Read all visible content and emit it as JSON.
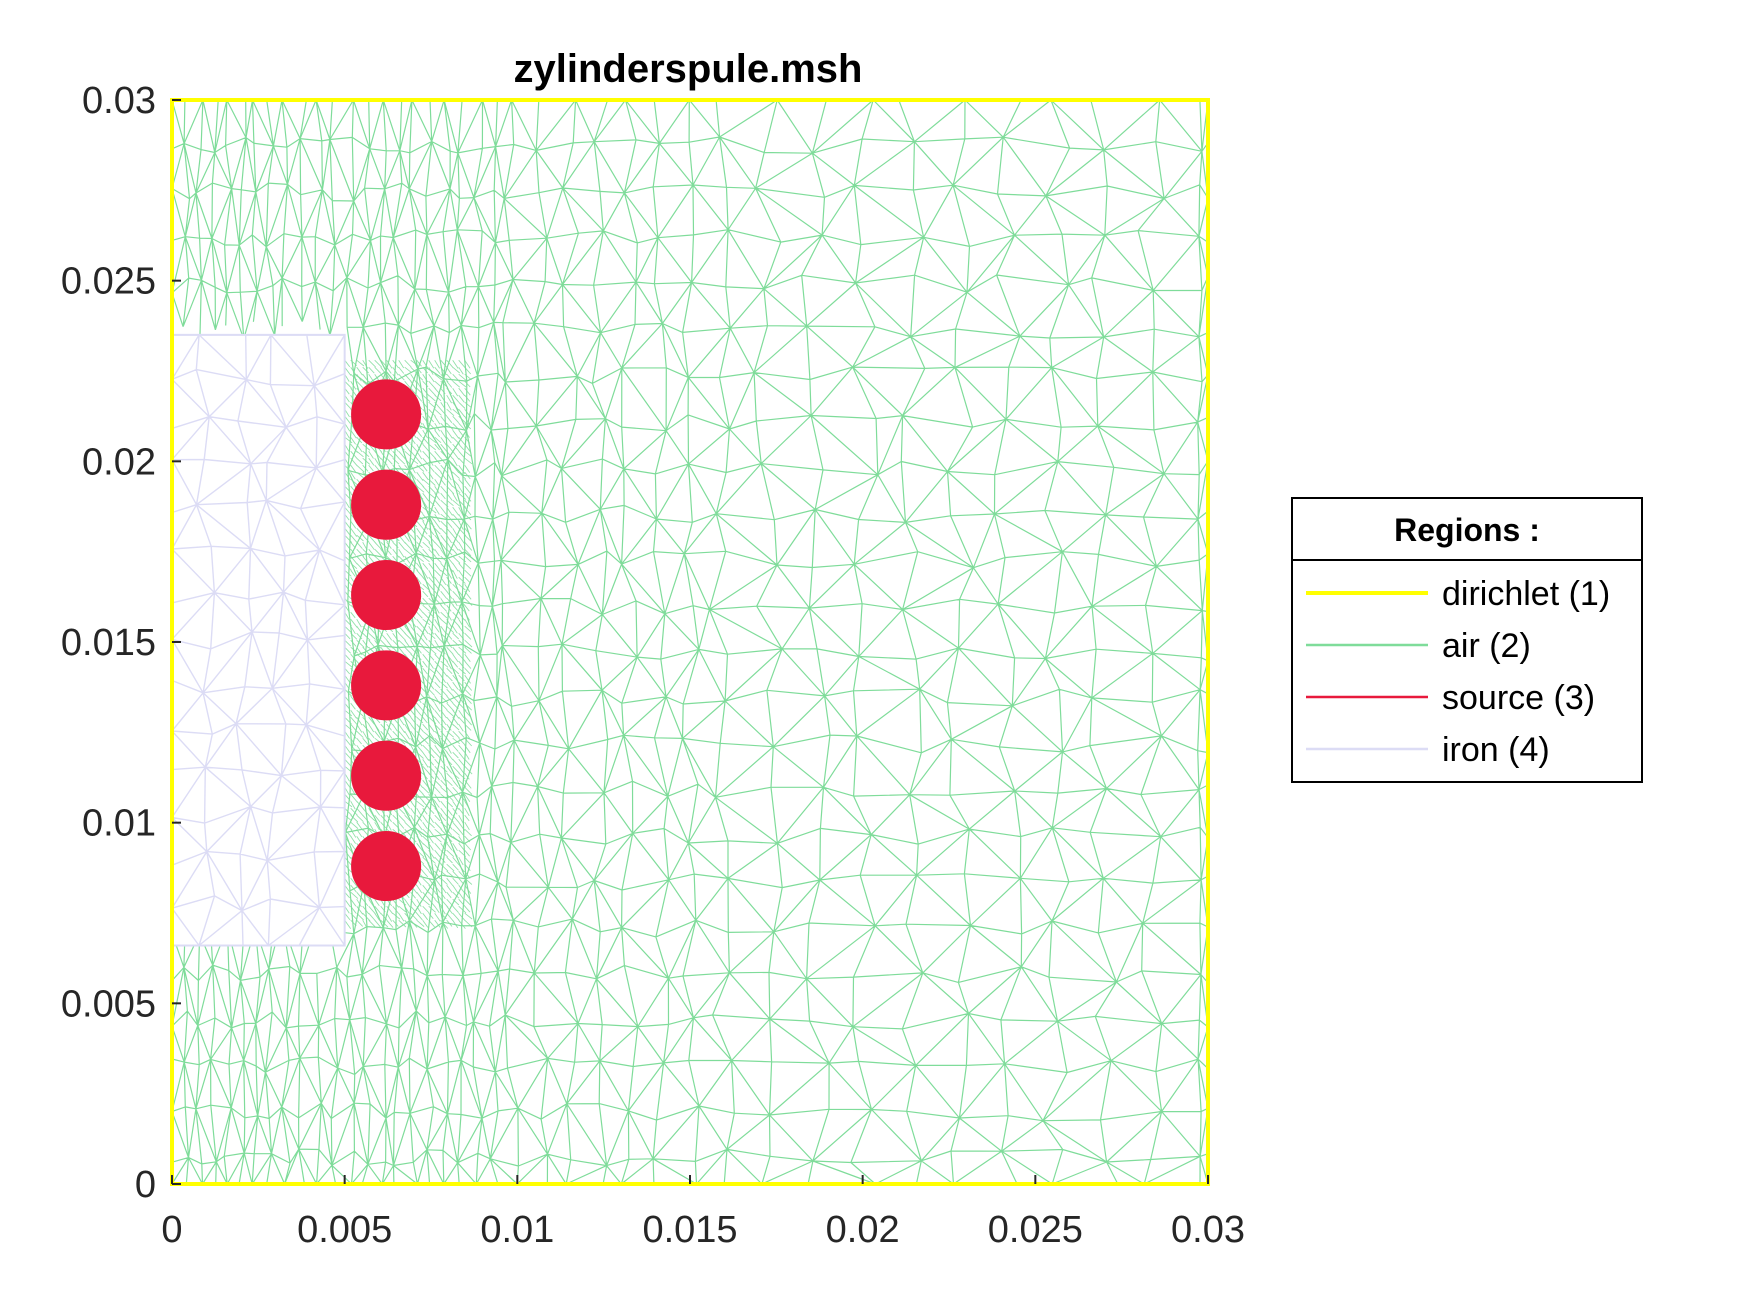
{
  "chart_data": {
    "type": "mesh",
    "title": "zylinderspule.msh",
    "xlabel": "",
    "ylabel": "",
    "xlim": [
      0,
      0.03
    ],
    "ylim": [
      0,
      0.03
    ],
    "x_ticks": [
      {
        "value": 0,
        "label": "0"
      },
      {
        "value": 0.005,
        "label": "0.005"
      },
      {
        "value": 0.01,
        "label": "0.01"
      },
      {
        "value": 0.015,
        "label": "0.015"
      },
      {
        "value": 0.02,
        "label": "0.02"
      },
      {
        "value": 0.025,
        "label": "0.025"
      },
      {
        "value": 0.03,
        "label": "0.03"
      }
    ],
    "y_ticks": [
      {
        "value": 0,
        "label": "0"
      },
      {
        "value": 0.005,
        "label": "0.005"
      },
      {
        "value": 0.01,
        "label": "0.01"
      },
      {
        "value": 0.015,
        "label": "0.015"
      },
      {
        "value": 0.02,
        "label": "0.02"
      },
      {
        "value": 0.025,
        "label": "0.025"
      },
      {
        "value": 0.03,
        "label": "0.03"
      }
    ],
    "grid": false,
    "legend": {
      "title": "Regions :",
      "placement": "outside-right",
      "entries": [
        {
          "label": "dirichlet (1)",
          "color": "#ffff00"
        },
        {
          "label": "air (2)",
          "color": "#7fdc9a"
        },
        {
          "label": "source (3)",
          "color": "#e8193c"
        },
        {
          "label": "iron (4)",
          "color": "#dcdcf5"
        }
      ]
    },
    "regions": {
      "dirichlet": {
        "type": "boundary",
        "x": [
          0,
          0.03
        ],
        "y": [
          0,
          0.03
        ]
      },
      "air": {
        "type": "domain",
        "x": [
          0,
          0.03
        ],
        "y": [
          0,
          0.03
        ]
      },
      "iron": {
        "type": "rectangle",
        "x": [
          0,
          0.005
        ],
        "y": [
          0.0066,
          0.0235
        ]
      },
      "source": {
        "type": "circles",
        "radius": 0.001,
        "centers": [
          [
            0.0062,
            0.0213
          ],
          [
            0.0062,
            0.0188
          ],
          [
            0.0062,
            0.0163
          ],
          [
            0.0062,
            0.0138
          ],
          [
            0.0062,
            0.0113
          ],
          [
            0.0062,
            0.0088
          ]
        ]
      }
    }
  }
}
